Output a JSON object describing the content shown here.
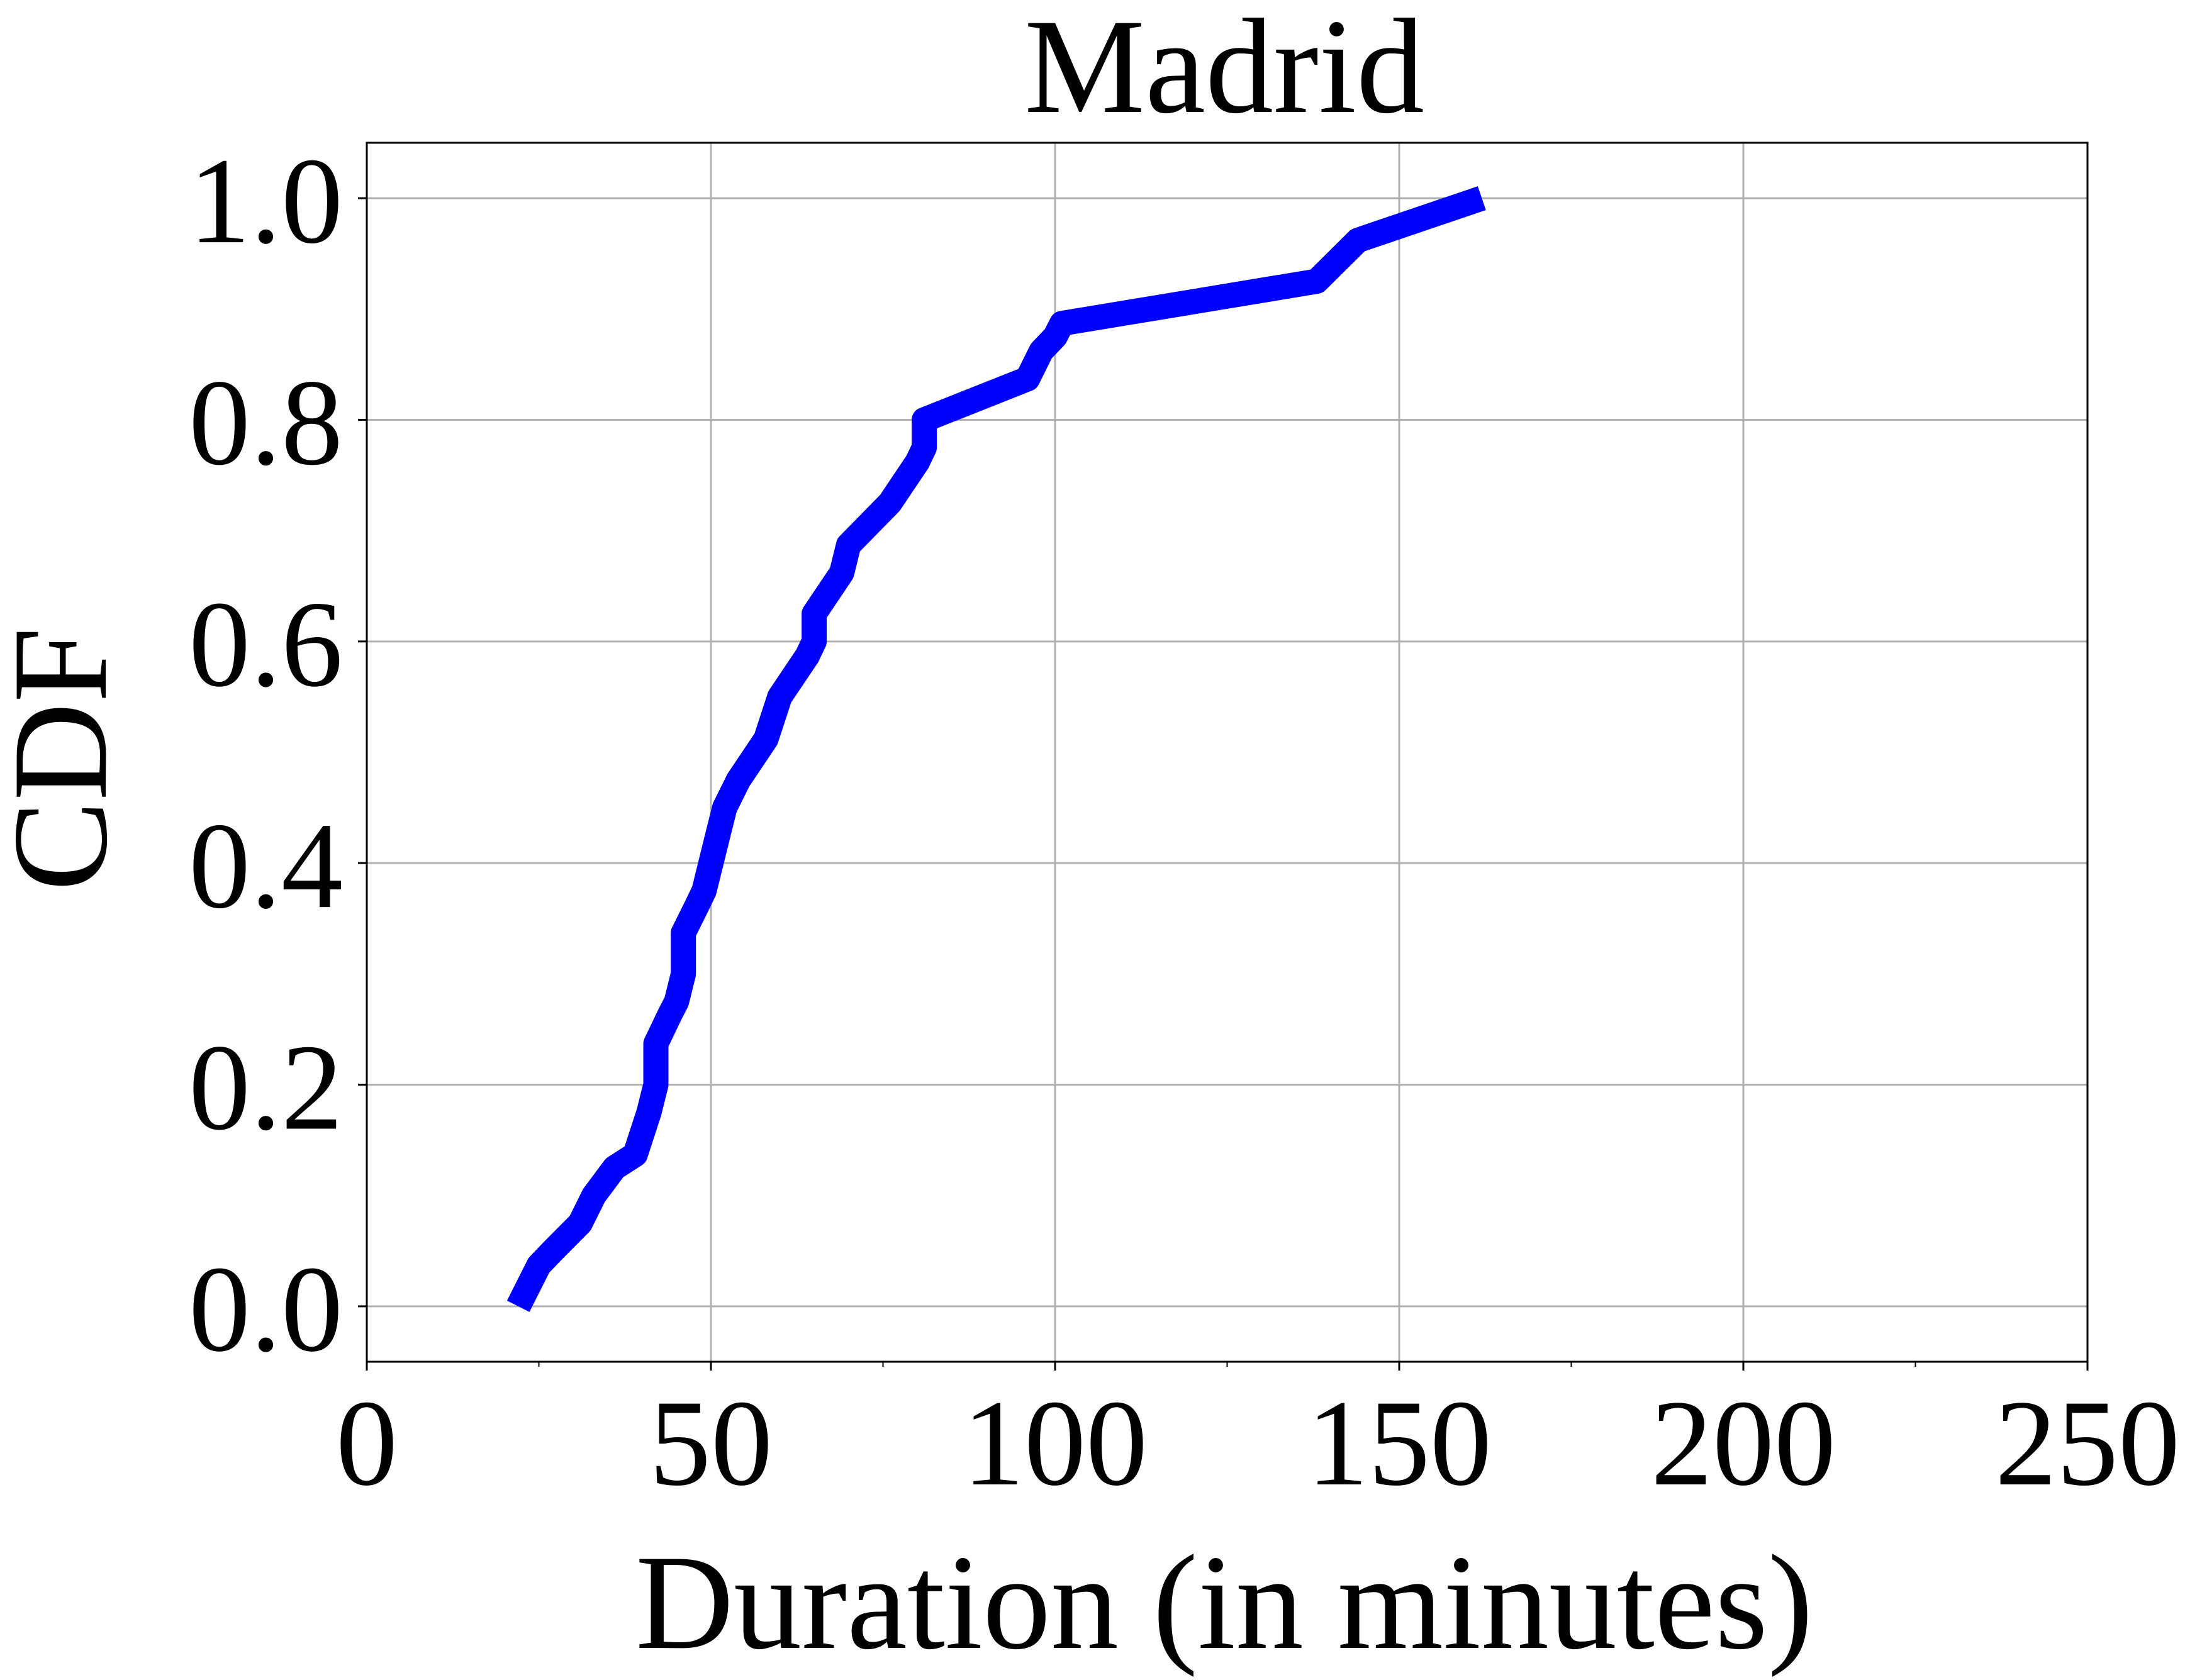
{
  "chart_data": {
    "type": "line",
    "title": "Madrid",
    "xlabel": "Duration (in minutes)",
    "ylabel": "CDF",
    "xlim": [
      0,
      250
    ],
    "ylim": [
      -0.05,
      1.05
    ],
    "xticks": [
      0,
      50,
      100,
      150,
      200,
      250
    ],
    "xtick_labels": [
      "0",
      "50",
      "100",
      "150",
      "200",
      "250"
    ],
    "xticks_minor": [
      25,
      75,
      125,
      175,
      225
    ],
    "yticks": [
      0.0,
      0.2,
      0.4,
      0.6,
      0.8,
      1.0
    ],
    "ytick_labels": [
      "0.0",
      "0.2",
      "0.4",
      "0.6",
      "0.8",
      "1.0"
    ],
    "grid": true,
    "series": [
      {
        "color": "#0000ff",
        "x": [
          22,
          25,
          27,
          31,
          33,
          36,
          39,
          41,
          42,
          42,
          44,
          45,
          46,
          46,
          48,
          49,
          51,
          52,
          54,
          58,
          60,
          64,
          65,
          65,
          69,
          70,
          76,
          80,
          81,
          81,
          96,
          98,
          100,
          101,
          138,
          144,
          162
        ],
        "y": [
          0.0,
          0.037,
          0.05,
          0.075,
          0.1,
          0.125,
          0.137,
          0.175,
          0.2,
          0.237,
          0.263,
          0.275,
          0.3,
          0.337,
          0.362,
          0.375,
          0.425,
          0.45,
          0.475,
          0.512,
          0.55,
          0.587,
          0.6,
          0.625,
          0.662,
          0.687,
          0.725,
          0.762,
          0.775,
          0.8,
          0.837,
          0.862,
          0.875,
          0.887,
          0.925,
          0.962,
          1.0
        ]
      }
    ]
  }
}
